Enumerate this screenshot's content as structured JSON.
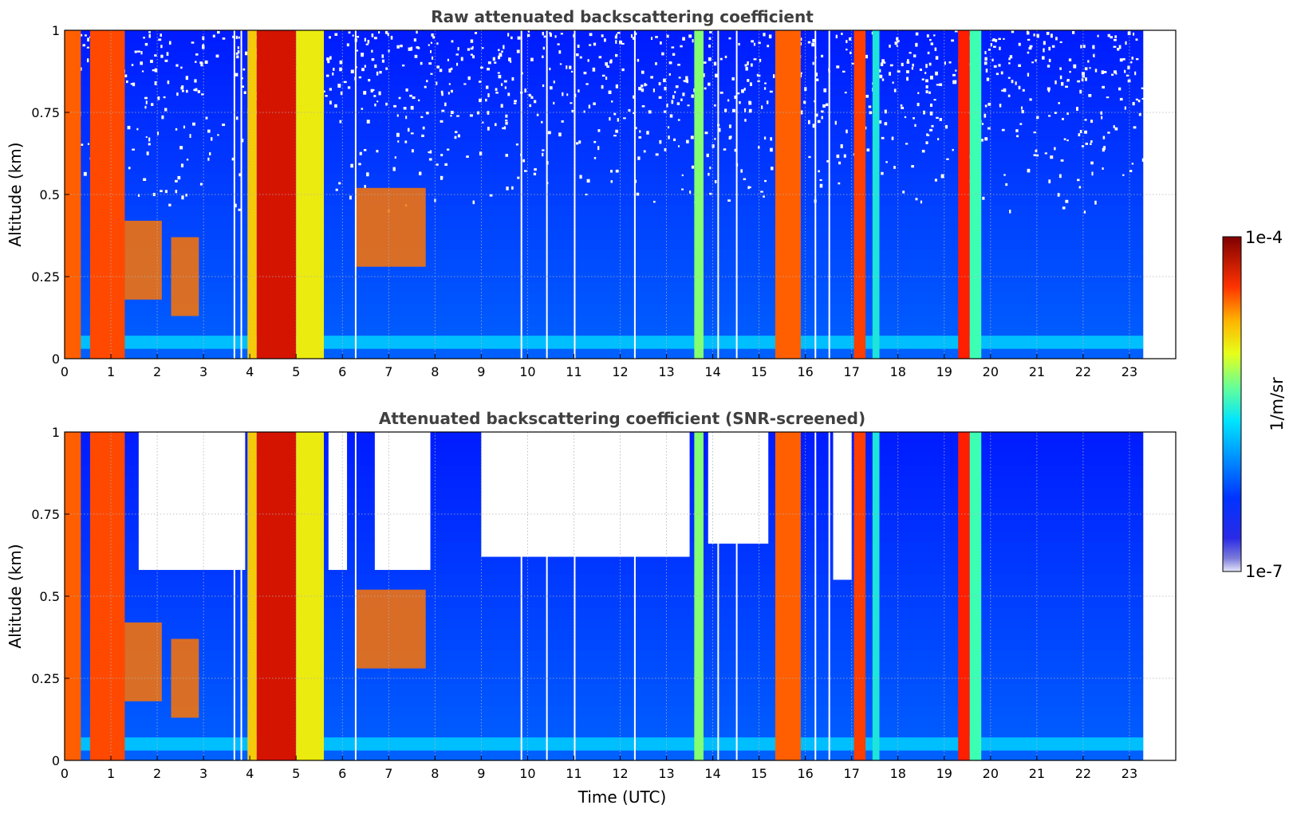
{
  "chart_data": [
    {
      "type": "heatmap",
      "title": "Raw attenuated backscattering coefficient",
      "xlabel": "",
      "ylabel": "Altitude (km)",
      "xlim": [
        0,
        24
      ],
      "ylim": [
        0,
        1
      ],
      "x_data_range": [
        0,
        23.3
      ],
      "xticks": [
        "0",
        "1",
        "2",
        "3",
        "4",
        "5",
        "6",
        "7",
        "8",
        "9",
        "10",
        "11",
        "12",
        "13",
        "14",
        "15",
        "16",
        "17",
        "18",
        "19",
        "20",
        "21",
        "22",
        "23"
      ],
      "yticks": [
        "0",
        "0.25",
        "0.5",
        "0.75",
        "1"
      ],
      "grid": true,
      "screened": false
    },
    {
      "type": "heatmap",
      "title": "Attenuated backscattering coefficient (SNR-screened)",
      "xlabel": "Time (UTC)",
      "ylabel": "Altitude (km)",
      "xlim": [
        0,
        24
      ],
      "ylim": [
        0,
        1
      ],
      "x_data_range": [
        0,
        23.3
      ],
      "xticks": [
        "0",
        "1",
        "2",
        "3",
        "4",
        "5",
        "6",
        "7",
        "8",
        "9",
        "10",
        "11",
        "12",
        "13",
        "14",
        "15",
        "16",
        "17",
        "18",
        "19",
        "20",
        "21",
        "22",
        "23"
      ],
      "yticks": [
        "0",
        "0.25",
        "0.5",
        "0.75",
        "1"
      ],
      "grid": true,
      "screened": true
    }
  ],
  "colorbar": {
    "label": "1/m/sr",
    "max_label": "1e-4",
    "min_label": "1e-7",
    "colormap": "jet",
    "scale": "log"
  },
  "features": {
    "columns_time_utc": [
      {
        "t0": 0.0,
        "t1": 0.35,
        "level": 0.82
      },
      {
        "t0": 0.55,
        "t1": 1.3,
        "level": 0.84
      },
      {
        "t0": 3.95,
        "t1": 4.15,
        "level": 0.7
      },
      {
        "t0": 4.15,
        "t1": 5.0,
        "level": 0.92
      },
      {
        "t0": 5.0,
        "t1": 5.6,
        "level": 0.65
      },
      {
        "t0": 13.6,
        "t1": 13.8,
        "level": 0.55
      },
      {
        "t0": 15.35,
        "t1": 15.9,
        "level": 0.82
      },
      {
        "t0": 17.05,
        "t1": 17.3,
        "level": 0.85
      },
      {
        "t0": 17.45,
        "t1": 17.6,
        "level": 0.42
      },
      {
        "t0": 19.3,
        "t1": 19.55,
        "level": 0.88
      },
      {
        "t0": 19.55,
        "t1": 19.8,
        "level": 0.5
      }
    ],
    "gaps_time_utc": [
      3.65,
      3.8,
      6.27,
      9.85,
      10.4,
      11.0,
      12.3,
      14.1,
      14.5,
      16.2,
      16.5
    ]
  }
}
